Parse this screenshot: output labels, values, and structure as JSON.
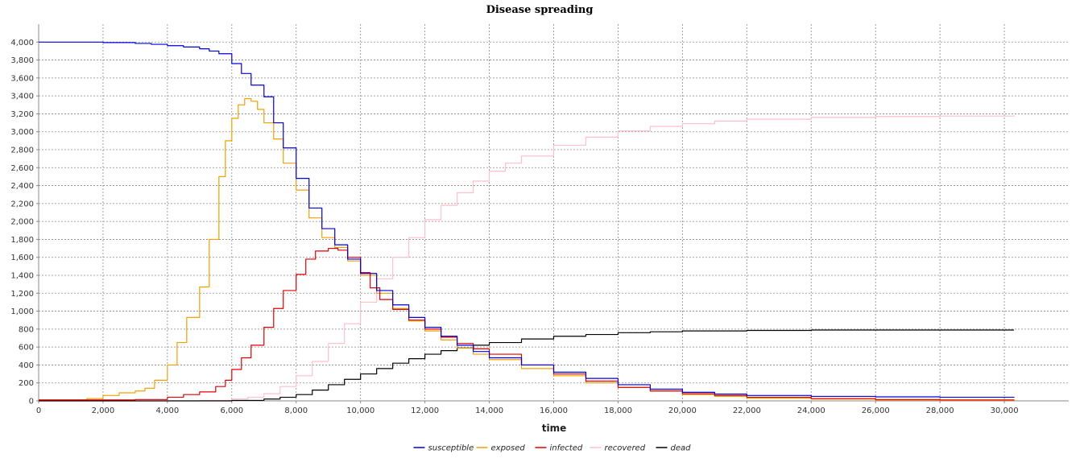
{
  "chart_data": {
    "type": "line",
    "title": "Disease spreading",
    "xlabel": "time",
    "ylabel": "",
    "xlim": [
      0,
      32000
    ],
    "ylim": [
      0,
      4200
    ],
    "x_ticks": [
      0,
      2000,
      4000,
      6000,
      8000,
      10000,
      12000,
      14000,
      16000,
      18000,
      20000,
      22000,
      24000,
      26000,
      28000,
      30000
    ],
    "x_tick_labels": [
      "0",
      "2,000",
      "4,000",
      "6,000",
      "8,000",
      "10,000",
      "12,000",
      "14,000",
      "16,000",
      "18,000",
      "20,000",
      "22,000",
      "24,000",
      "26,000",
      "28,000",
      "30,000"
    ],
    "y_ticks": [
      0,
      200,
      400,
      600,
      800,
      1000,
      1200,
      1400,
      1600,
      1800,
      2000,
      2200,
      2400,
      2600,
      2800,
      3000,
      3200,
      3400,
      3600,
      3800,
      4000
    ],
    "y_tick_labels": [
      "0",
      "200",
      "400",
      "600",
      "800",
      "1,000",
      "1,200",
      "1,400",
      "1,600",
      "1,800",
      "2,000",
      "2,200",
      "2,400",
      "2,600",
      "2,800",
      "3,000",
      "3,200",
      "3,400",
      "3,600",
      "3,800",
      "4,000"
    ],
    "grid": true,
    "legend_position": "bottom-center",
    "series": [
      {
        "name": "susceptible",
        "color": "#0000dd",
        "x": [
          0,
          1000,
          2000,
          3000,
          3500,
          4000,
          4500,
          5000,
          5300,
          5600,
          6000,
          6300,
          6600,
          7000,
          7300,
          7600,
          8000,
          8400,
          8800,
          9200,
          9600,
          10000,
          10500,
          11000,
          11500,
          12000,
          12500,
          13000,
          13500,
          14000,
          15000,
          16000,
          17000,
          18000,
          19000,
          20000,
          21000,
          22000,
          24000,
          26000,
          28000,
          30300
        ],
        "y": [
          4000,
          4000,
          3995,
          3985,
          3975,
          3960,
          3945,
          3925,
          3900,
          3870,
          3760,
          3650,
          3520,
          3390,
          3100,
          2820,
          2480,
          2150,
          1920,
          1740,
          1580,
          1420,
          1230,
          1070,
          930,
          820,
          720,
          620,
          550,
          480,
          400,
          320,
          250,
          180,
          130,
          95,
          75,
          60,
          50,
          45,
          40,
          35
        ]
      },
      {
        "name": "exposed",
        "color": "#f0a000",
        "x": [
          0,
          1000,
          1500,
          2000,
          2500,
          3000,
          3300,
          3600,
          4000,
          4300,
          4600,
          5000,
          5300,
          5600,
          5800,
          6000,
          6200,
          6400,
          6600,
          6800,
          7000,
          7300,
          7600,
          8000,
          8400,
          8800,
          9200,
          9600,
          10000,
          10500,
          11000,
          11500,
          12000,
          12500,
          13000,
          13500,
          14000,
          15000,
          16000,
          17000,
          18000,
          19000,
          20000,
          21000,
          22000,
          24000,
          26000,
          28000,
          30300
        ],
        "y": [
          10,
          10,
          25,
          60,
          90,
          110,
          140,
          230,
          400,
          650,
          930,
          1270,
          1800,
          2500,
          2900,
          3150,
          3300,
          3370,
          3340,
          3250,
          3100,
          2920,
          2650,
          2350,
          2040,
          1820,
          1710,
          1560,
          1400,
          1200,
          1030,
          890,
          780,
          680,
          590,
          520,
          460,
          360,
          280,
          200,
          150,
          110,
          70,
          50,
          30,
          20,
          10,
          5,
          0
        ]
      },
      {
        "name": "infected",
        "color": "#e00000",
        "x": [
          0,
          1000,
          2000,
          3000,
          4000,
          4500,
          5000,
          5500,
          5800,
          6000,
          6300,
          6600,
          7000,
          7300,
          7600,
          8000,
          8300,
          8600,
          9000,
          9300,
          9600,
          10000,
          10300,
          10600,
          11000,
          11500,
          12000,
          12500,
          13000,
          13500,
          14000,
          15000,
          16000,
          17000,
          18000,
          19000,
          20000,
          21000,
          22000,
          24000,
          26000,
          28000,
          30300
        ],
        "y": [
          10,
          10,
          10,
          15,
          40,
          70,
          100,
          160,
          230,
          350,
          480,
          620,
          820,
          1030,
          1230,
          1410,
          1580,
          1670,
          1700,
          1680,
          1600,
          1430,
          1260,
          1130,
          1020,
          900,
          800,
          710,
          640,
          580,
          520,
          400,
          300,
          220,
          150,
          110,
          80,
          60,
          40,
          25,
          15,
          10,
          5
        ]
      },
      {
        "name": "recovered",
        "color": "#ffbfcb",
        "x": [
          0,
          2000,
          4000,
          5000,
          6000,
          6500,
          7000,
          7500,
          8000,
          8500,
          9000,
          9500,
          10000,
          10500,
          11000,
          11500,
          12000,
          12500,
          13000,
          13500,
          14000,
          14500,
          15000,
          16000,
          17000,
          18000,
          19000,
          20000,
          21000,
          22000,
          24000,
          26000,
          28000,
          30300
        ],
        "y": [
          0,
          0,
          0,
          5,
          20,
          40,
          80,
          160,
          280,
          440,
          640,
          860,
          1100,
          1360,
          1600,
          1820,
          2020,
          2180,
          2320,
          2450,
          2560,
          2650,
          2730,
          2850,
          2940,
          3010,
          3060,
          3090,
          3120,
          3140,
          3160,
          3170,
          3175,
          3180
        ]
      },
      {
        "name": "dead",
        "color": "#000000",
        "x": [
          0,
          5000,
          6000,
          7000,
          7500,
          8000,
          8500,
          9000,
          9500,
          10000,
          10500,
          11000,
          11500,
          12000,
          12500,
          13000,
          13500,
          14000,
          15000,
          16000,
          17000,
          18000,
          19000,
          20000,
          22000,
          24000,
          26000,
          28000,
          30300
        ],
        "y": [
          0,
          0,
          5,
          20,
          40,
          70,
          120,
          180,
          240,
          300,
          360,
          420,
          470,
          520,
          560,
          590,
          620,
          650,
          690,
          720,
          740,
          760,
          770,
          780,
          785,
          790,
          790,
          790,
          790
        ]
      }
    ]
  }
}
